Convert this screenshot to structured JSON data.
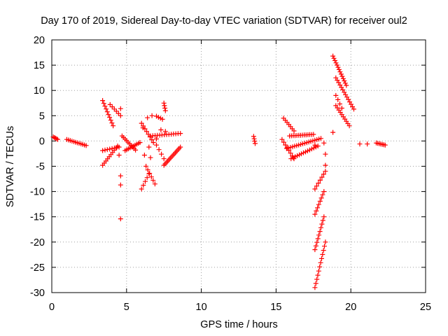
{
  "chart_data": {
    "type": "scatter",
    "title": "Day 170 of 2019, Sidereal Day-to-day VTEC variation (SDTVAR) for receiver oul2",
    "xlabel": "GPS time / hours",
    "ylabel": "SDTVAR / TECUs",
    "xlim": [
      0,
      25
    ],
    "ylim": [
      -30,
      20
    ],
    "xticks": [
      0,
      5,
      10,
      15,
      20,
      25
    ],
    "yticks": [
      -30,
      -25,
      -20,
      -15,
      -10,
      -5,
      0,
      5,
      10,
      15,
      20
    ],
    "grid": true,
    "marker": "+",
    "color": "#ff0000",
    "series": [
      {
        "name": "SDTVAR",
        "segments": [
          {
            "from": [
              0.1,
              0.8
            ],
            "to": [
              0.4,
              0.3
            ],
            "n": 5
          },
          {
            "from": [
              1.0,
              0.3
            ],
            "to": [
              2.3,
              -0.9
            ],
            "n": 12
          },
          {
            "from": [
              3.4,
              8.0
            ],
            "to": [
              4.1,
              3.0
            ],
            "n": 10
          },
          {
            "from": [
              3.9,
              7.2
            ],
            "to": [
              4.6,
              5.0
            ],
            "n": 6
          },
          {
            "from": [
              3.4,
              -4.8
            ],
            "to": [
              4.4,
              -1.0
            ],
            "n": 10
          },
          {
            "from": [
              3.4,
              -1.9
            ],
            "to": [
              4.5,
              -1.2
            ],
            "n": 8
          },
          {
            "from": [
              4.7,
              1.0
            ],
            "to": [
              5.6,
              -1.8
            ],
            "n": 10
          },
          {
            "from": [
              4.9,
              -1.9
            ],
            "to": [
              5.9,
              -0.3
            ],
            "n": 10
          },
          {
            "from": [
              6.0,
              3.5
            ],
            "to": [
              6.8,
              -0.3
            ],
            "n": 8
          },
          {
            "from": [
              6.3,
              -5.0
            ],
            "to": [
              6.9,
              -8.5
            ],
            "n": 6
          },
          {
            "from": [
              6.0,
              -9.5
            ],
            "to": [
              6.5,
              -6.5
            ],
            "n": 5
          },
          {
            "from": [
              6.6,
              1.0
            ],
            "to": [
              8.6,
              1.5
            ],
            "n": 14
          },
          {
            "from": [
              7.0,
              4.9
            ],
            "to": [
              7.4,
              4.3
            ],
            "n": 4
          },
          {
            "from": [
              7.5,
              7.5
            ],
            "to": [
              7.6,
              6.0
            ],
            "n": 4
          },
          {
            "from": [
              7.5,
              -4.8
            ],
            "to": [
              8.6,
              -1.2
            ],
            "n": 14
          },
          {
            "from": [
              7.0,
              -0.8
            ],
            "to": [
              7.5,
              -3.5
            ],
            "n": 4
          },
          {
            "from": [
              13.5,
              0.9
            ],
            "to": [
              13.6,
              -0.5
            ],
            "n": 4
          },
          {
            "from": [
              15.4,
              0.3
            ],
            "to": [
              16.2,
              -3.5
            ],
            "n": 8
          },
          {
            "from": [
              15.5,
              4.5
            ],
            "to": [
              16.2,
              2.0
            ],
            "n": 7
          },
          {
            "from": [
              15.9,
              1.0
            ],
            "to": [
              17.5,
              1.3
            ],
            "n": 14
          },
          {
            "from": [
              15.7,
              -1.5
            ],
            "to": [
              18.0,
              0.5
            ],
            "n": 18
          },
          {
            "from": [
              16.0,
              -3.5
            ],
            "to": [
              17.8,
              -1.0
            ],
            "n": 14
          },
          {
            "from": [
              17.6,
              -9.5
            ],
            "to": [
              18.3,
              -6.0
            ],
            "n": 7
          },
          {
            "from": [
              17.6,
              -14.5
            ],
            "to": [
              18.2,
              -10.0
            ],
            "n": 8
          },
          {
            "from": [
              17.6,
              -21.5
            ],
            "to": [
              18.2,
              -15.0
            ],
            "n": 10
          },
          {
            "from": [
              17.6,
              -29.0
            ],
            "to": [
              18.3,
              -20.0
            ],
            "n": 12
          },
          {
            "from": [
              18.8,
              16.8
            ],
            "to": [
              19.7,
              11.0
            ],
            "n": 14
          },
          {
            "from": [
              19.0,
              12.5
            ],
            "to": [
              20.2,
              6.3
            ],
            "n": 14
          },
          {
            "from": [
              19.0,
              7.0
            ],
            "to": [
              19.9,
              3.0
            ],
            "n": 10
          },
          {
            "from": [
              19.0,
              9.0
            ],
            "to": [
              19.4,
              6.5
            ],
            "n": 4
          },
          {
            "from": [
              20.6,
              -0.6
            ],
            "to": [
              21.1,
              -0.6
            ],
            "n": 2
          },
          {
            "from": [
              21.7,
              -0.4
            ],
            "to": [
              22.3,
              -0.8
            ],
            "n": 7
          }
        ],
        "points": [
          [
            4.6,
            6.4
          ],
          [
            4.5,
            -2.8
          ],
          [
            4.6,
            -6.9
          ],
          [
            4.6,
            -8.7
          ],
          [
            4.6,
            -15.4
          ],
          [
            6.1,
            2.6
          ],
          [
            6.4,
            4.6
          ],
          [
            6.7,
            5.0
          ],
          [
            6.2,
            -2.8
          ],
          [
            6.6,
            -3.3
          ],
          [
            7.3,
            2.2
          ],
          [
            7.6,
            1.9
          ],
          [
            7.0,
            0.4
          ],
          [
            6.5,
            -1.2
          ],
          [
            18.3,
            -2.6
          ],
          [
            18.3,
            -4.8
          ],
          [
            18.8,
            1.7
          ],
          [
            18.2,
            -0.4
          ],
          [
            17.6,
            -0.8
          ]
        ]
      }
    ]
  }
}
